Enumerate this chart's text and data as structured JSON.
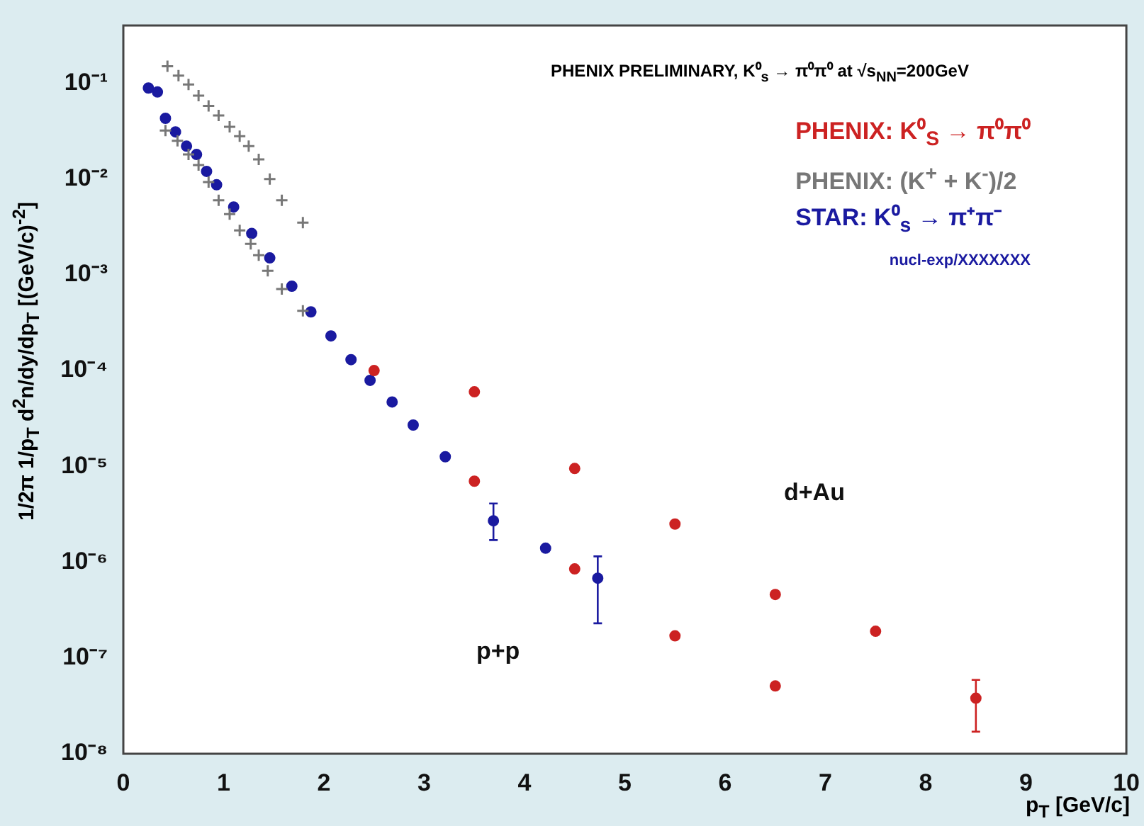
{
  "chart_data": {
    "type": "scatter",
    "title": "PHENIX PRELIMINARY, K⁰$_{s}$ → π⁰π⁰ at √s$_{NN}$=200GeV",
    "xlabel": "p$_{T}$ [GeV/c]",
    "ylabel": "1/2π  1/p$_{T}$  d$^{2}$n/dy/dp$_{T}$ [(GeV/c)$^{-2}$]",
    "log": "y",
    "xlim": [
      0,
      10
    ],
    "xticks": [
      0,
      1,
      2,
      3,
      4,
      5,
      6,
      7,
      8,
      9,
      10
    ],
    "ylim": [
      1e-08,
      0.4
    ],
    "yticks": [
      {
        "value": 1e-08,
        "label": "10⁻⁸"
      },
      {
        "value": 1e-07,
        "label": "10⁻⁷"
      },
      {
        "value": 1e-06,
        "label": "10⁻⁶"
      },
      {
        "value": 1e-05,
        "label": "10⁻⁵"
      },
      {
        "value": 0.0001,
        "label": "10⁻⁴"
      },
      {
        "value": 0.001,
        "label": "10⁻³"
      },
      {
        "value": 0.01,
        "label": "10⁻²"
      },
      {
        "value": 0.1,
        "label": "10⁻¹"
      }
    ],
    "grid": false,
    "legend": "top right",
    "series": [
      {
        "name": "PHENIX: K⁰$_{S}$ → π⁰π⁰",
        "color": "#cc2222",
        "marker": "circle",
        "x": [
          2.5,
          3.5,
          3.5,
          4.5,
          4.5,
          5.5,
          5.5,
          6.5,
          6.5,
          7.5,
          8.5
        ],
        "values": [
          0.0001,
          6e-05,
          7e-06,
          9.5e-06,
          8.5e-07,
          2.5e-06,
          1.7e-07,
          4.6e-07,
          5.1e-08,
          1.9e-07,
          3.8e-08
        ],
        "errors": [
          null,
          null,
          null,
          null,
          null,
          null,
          null,
          null,
          null,
          null,
          [
            1.7e-08,
            5.9e-08
          ]
        ]
      },
      {
        "name": "PHENIX: (K$^{+}$ + K$^{-}$)/2",
        "color": "#777777",
        "marker": "cross",
        "x": [
          0.44,
          0.55,
          0.65,
          0.75,
          0.85,
          0.95,
          1.06,
          1.16,
          1.25,
          1.35,
          1.46,
          1.58,
          1.79,
          0.42,
          0.54,
          0.65,
          0.75,
          0.85,
          0.95,
          1.06,
          1.16,
          1.27,
          1.35,
          1.44,
          1.58,
          1.79
        ],
        "values": [
          0.15,
          0.12,
          0.097,
          0.074,
          0.058,
          0.046,
          0.035,
          0.028,
          0.022,
          0.016,
          0.01,
          0.006,
          0.0035,
          0.032,
          0.025,
          0.018,
          0.014,
          0.0093,
          0.006,
          0.0043,
          0.0029,
          0.0021,
          0.0016,
          0.0011,
          0.00071,
          0.00042
        ]
      },
      {
        "name": "STAR: K⁰$_{s}$ → π⁺π⁻",
        "color": "#1a1aa0",
        "marker": "circle",
        "x": [
          0.25,
          0.34,
          0.42,
          0.52,
          0.63,
          0.73,
          0.83,
          0.93,
          1.1,
          1.28,
          1.46,
          1.68,
          1.87,
          2.07,
          2.27,
          2.46,
          2.68,
          2.89,
          3.21,
          3.69,
          4.21,
          4.73
        ],
        "values": [
          0.089,
          0.081,
          0.043,
          0.031,
          0.022,
          0.018,
          0.012,
          0.0087,
          0.0051,
          0.0027,
          0.0015,
          0.00076,
          0.00041,
          0.00023,
          0.00013,
          7.9e-05,
          4.7e-05,
          2.7e-05,
          1.26e-05,
          2.7e-06,
          1.4e-06,
          6.8e-07
        ],
        "errors": [
          null,
          null,
          null,
          null,
          null,
          null,
          null,
          null,
          null,
          null,
          null,
          null,
          null,
          null,
          null,
          null,
          null,
          null,
          null,
          [
            1.7e-06,
            4.1e-06
          ],
          null,
          [
            2.3e-07,
            1.15e-06
          ]
        ]
      }
    ],
    "annotations": [
      "nucl-exp/XXXXXXX",
      "d+Au",
      "p+p"
    ]
  }
}
